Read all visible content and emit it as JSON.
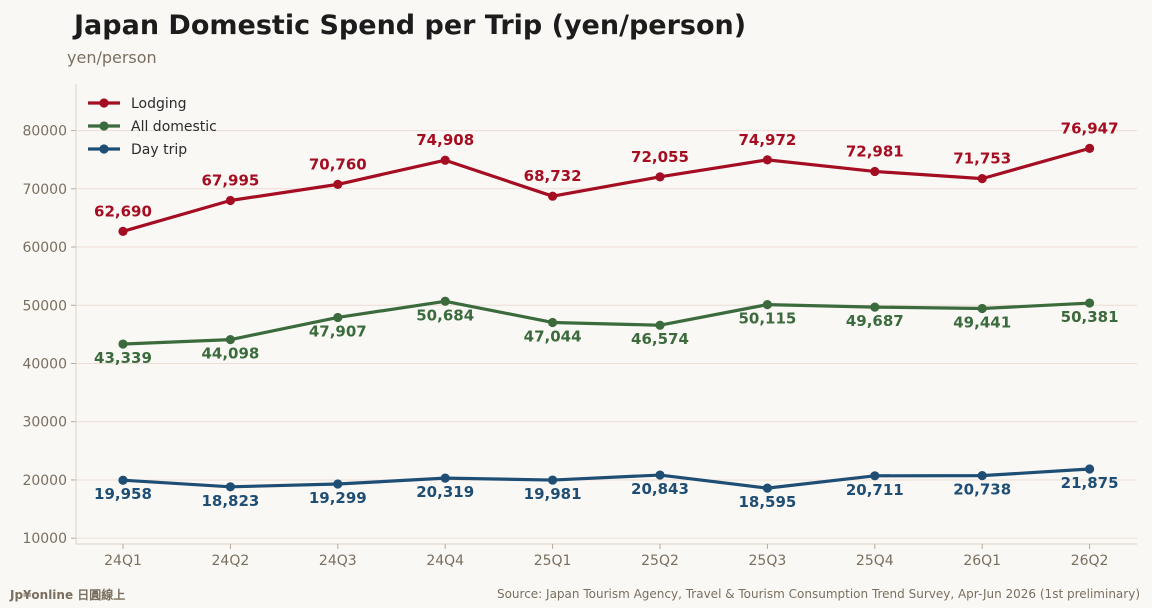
{
  "header": {
    "title": "Japan Domestic Spend per Trip (yen/person)",
    "unit_label": "yen/person"
  },
  "footer": {
    "brand": "Jp¥online 日圓線上",
    "source": "Source: Japan Tourism Agency, Travel & Tourism Consumption Trend Survey, Apr-Jun 2026 (1st preliminary)"
  },
  "chart_data": {
    "type": "line",
    "title": "Japan Domestic Spend per Trip (yen/person)",
    "ylabel": "yen/person",
    "xlabel": "",
    "categories": [
      "24Q1",
      "24Q2",
      "24Q3",
      "24Q4",
      "25Q1",
      "25Q2",
      "25Q3",
      "25Q4",
      "26Q1",
      "26Q2"
    ],
    "ylim": [
      9000,
      88000
    ],
    "yticks": [
      10000,
      20000,
      30000,
      40000,
      50000,
      60000,
      70000,
      80000
    ],
    "grid": true,
    "legend_position": "top-left",
    "series": [
      {
        "name": "Lodging",
        "color": "#a50e22",
        "label_position": "above",
        "values": [
          62690,
          67995,
          70760,
          74908,
          68732,
          72055,
          74972,
          72981,
          71753,
          76947
        ],
        "labels": [
          "62,690",
          "67,995",
          "70,760",
          "74,908",
          "68,732",
          "72,055",
          "74,972",
          "72,981",
          "71,753",
          "76,947"
        ]
      },
      {
        "name": "All domestic",
        "color": "#3b6b3c",
        "label_position": "below",
        "values": [
          43339,
          44098,
          47907,
          50684,
          47044,
          46574,
          50115,
          49687,
          49441,
          50381
        ],
        "labels": [
          "43,339",
          "44,098",
          "47,907",
          "50,684",
          "47,044",
          "46,574",
          "50,115",
          "49,687",
          "49,441",
          "50,381"
        ]
      },
      {
        "name": "Day trip",
        "color": "#1f4e75",
        "label_position": "below",
        "values": [
          19958,
          18823,
          19299,
          20319,
          19981,
          20843,
          18595,
          20711,
          20738,
          21875
        ],
        "labels": [
          "19,958",
          "18,823",
          "19,299",
          "20,319",
          "19,981",
          "20,843",
          "18,595",
          "20,711",
          "20,738",
          "21,875"
        ]
      }
    ]
  }
}
